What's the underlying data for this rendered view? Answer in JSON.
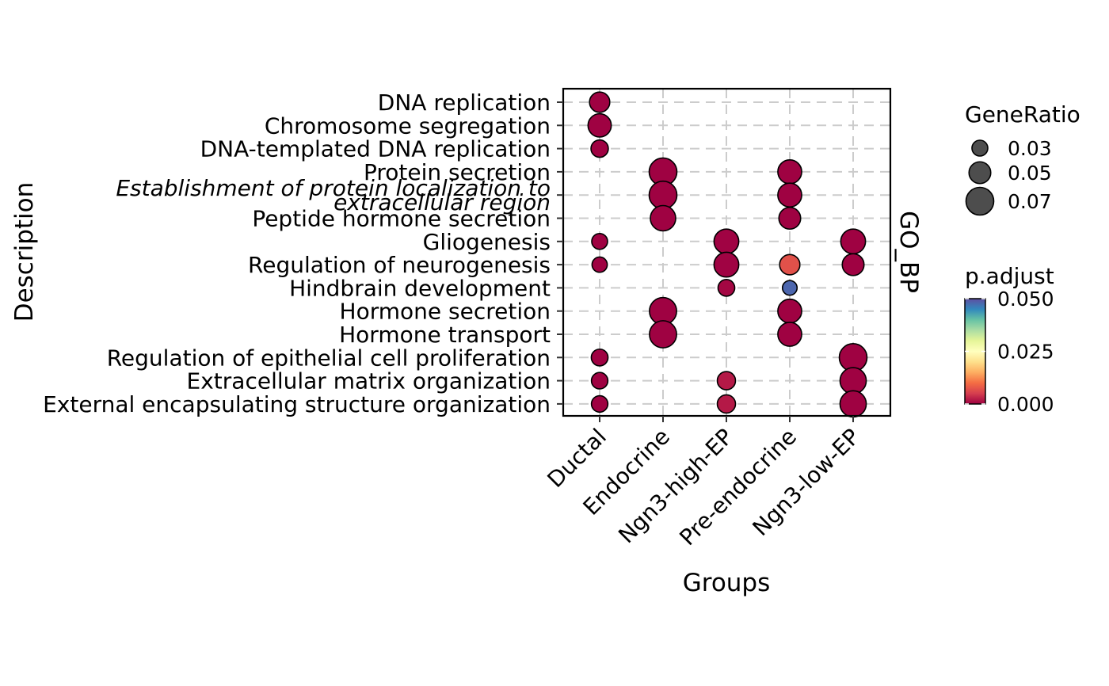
{
  "chart_data": {
    "type": "scatter",
    "x_categories": [
      "Ductal",
      "Endocrine",
      "Ngn3-high-EP",
      "Pre-endocrine",
      "Ngn3-low-EP"
    ],
    "y_categories": [
      "DNA replication",
      "Chromosome segregation",
      "DNA-templated DNA replication",
      "Protein secretion",
      "Establishment of protein localization to extracellular region",
      "Peptide hormone secretion",
      "Gliogenesis",
      "Regulation of neurogenesis",
      "Hindbrain development",
      "Hormone secretion",
      "Hormone transport",
      "Regulation of epithelial cell proliferation",
      "Extracellular matrix organization",
      "External encapsulating structure organization"
    ],
    "y_label_display": [
      [
        "DNA replication"
      ],
      [
        "Chromosome segregation"
      ],
      [
        "DNA-templated DNA replication"
      ],
      [
        "Protein secretion"
      ],
      [
        "Establishment of protein localization to",
        "extracellular region"
      ],
      [
        "Peptide hormone secretion"
      ],
      [
        "Gliogenesis"
      ],
      [
        "Regulation of neurogenesis"
      ],
      [
        "Hindbrain development"
      ],
      [
        "Hormone secretion"
      ],
      [
        "Hormone transport"
      ],
      [
        "Regulation of epithelial cell proliferation"
      ],
      [
        "Extracellular matrix organization"
      ],
      [
        "External encapsulating structure organization"
      ]
    ],
    "italic_y_labels": [
      "Establishment of protein localization to extracellular region"
    ],
    "xlabel": "Groups",
    "ylabel": "Description",
    "facet_label": "GO_BP",
    "grid": true,
    "points": [
      {
        "group": "Ductal",
        "term": "DNA replication",
        "gene_ratio": 0.045,
        "p_adjust": 0.0001
      },
      {
        "group": "Ductal",
        "term": "Chromosome segregation",
        "gene_ratio": 0.055,
        "p_adjust": 0.0001
      },
      {
        "group": "Ductal",
        "term": "DNA-templated DNA replication",
        "gene_ratio": 0.035,
        "p_adjust": 0.0001
      },
      {
        "group": "Ductal",
        "term": "Gliogenesis",
        "gene_ratio": 0.03,
        "p_adjust": 0.0001
      },
      {
        "group": "Ductal",
        "term": "Regulation of neurogenesis",
        "gene_ratio": 0.028,
        "p_adjust": 0.0001
      },
      {
        "group": "Ductal",
        "term": "Regulation of epithelial cell proliferation",
        "gene_ratio": 0.033,
        "p_adjust": 0.0001
      },
      {
        "group": "Ductal",
        "term": "Extracellular matrix organization",
        "gene_ratio": 0.032,
        "p_adjust": 0.0001
      },
      {
        "group": "Ductal",
        "term": "External encapsulating structure organization",
        "gene_ratio": 0.032,
        "p_adjust": 0.0001
      },
      {
        "group": "Endocrine",
        "term": "Protein secretion",
        "gene_ratio": 0.07,
        "p_adjust": 0.0001
      },
      {
        "group": "Endocrine",
        "term": "Establishment of protein localization to extracellular region",
        "gene_ratio": 0.07,
        "p_adjust": 0.0001
      },
      {
        "group": "Endocrine",
        "term": "Peptide hormone secretion",
        "gene_ratio": 0.062,
        "p_adjust": 0.0001
      },
      {
        "group": "Endocrine",
        "term": "Hormone secretion",
        "gene_ratio": 0.068,
        "p_adjust": 0.0001
      },
      {
        "group": "Endocrine",
        "term": "Hormone transport",
        "gene_ratio": 0.068,
        "p_adjust": 0.0001
      },
      {
        "group": "Ngn3-high-EP",
        "term": "Gliogenesis",
        "gene_ratio": 0.06,
        "p_adjust": 0.0002
      },
      {
        "group": "Ngn3-high-EP",
        "term": "Regulation of neurogenesis",
        "gene_ratio": 0.06,
        "p_adjust": 0.0002
      },
      {
        "group": "Ngn3-high-EP",
        "term": "Hindbrain development",
        "gene_ratio": 0.033,
        "p_adjust": 0.0005
      },
      {
        "group": "Ngn3-high-EP",
        "term": "Extracellular matrix organization",
        "gene_ratio": 0.038,
        "p_adjust": 0.002
      },
      {
        "group": "Ngn3-high-EP",
        "term": "External encapsulating structure organization",
        "gene_ratio": 0.038,
        "p_adjust": 0.002
      },
      {
        "group": "Pre-endocrine",
        "term": "Protein secretion",
        "gene_ratio": 0.057,
        "p_adjust": 0.0001
      },
      {
        "group": "Pre-endocrine",
        "term": "Establishment of protein localization to extracellular region",
        "gene_ratio": 0.057,
        "p_adjust": 0.0001
      },
      {
        "group": "Pre-endocrine",
        "term": "Peptide hormone secretion",
        "gene_ratio": 0.05,
        "p_adjust": 0.0001
      },
      {
        "group": "Pre-endocrine",
        "term": "Regulation of neurogenesis",
        "gene_ratio": 0.045,
        "p_adjust": 0.007
      },
      {
        "group": "Pre-endocrine",
        "term": "Hindbrain development",
        "gene_ratio": 0.026,
        "p_adjust": 0.048
      },
      {
        "group": "Pre-endocrine",
        "term": "Hormone secretion",
        "gene_ratio": 0.057,
        "p_adjust": 0.0001
      },
      {
        "group": "Pre-endocrine",
        "term": "Hormone transport",
        "gene_ratio": 0.057,
        "p_adjust": 0.0001
      },
      {
        "group": "Ngn3-low-EP",
        "term": "Gliogenesis",
        "gene_ratio": 0.06,
        "p_adjust": 0.0001
      },
      {
        "group": "Ngn3-low-EP",
        "term": "Regulation of neurogenesis",
        "gene_ratio": 0.05,
        "p_adjust": 0.0001
      },
      {
        "group": "Ngn3-low-EP",
        "term": "Regulation of epithelial cell proliferation",
        "gene_ratio": 0.07,
        "p_adjust": 0.0001
      },
      {
        "group": "Ngn3-low-EP",
        "term": "Extracellular matrix organization",
        "gene_ratio": 0.065,
        "p_adjust": 0.0001
      },
      {
        "group": "Ngn3-low-EP",
        "term": "External encapsulating structure organization",
        "gene_ratio": 0.065,
        "p_adjust": 0.0001
      }
    ],
    "size_legend": {
      "title": "GeneRatio",
      "values": [
        0.03,
        0.05,
        0.07
      ],
      "labels": [
        "0.03",
        "0.05",
        "0.07"
      ],
      "key_color": "#4d4d4d"
    },
    "color_legend": {
      "title": "p.adjust",
      "range": [
        0.0,
        0.05
      ],
      "ticks": [
        0.05,
        0.025,
        0.0
      ],
      "tick_labels": [
        "0.050",
        "0.025",
        "0.000"
      ],
      "palette": "Spectral",
      "gradient_colors": [
        "#9e0142",
        "#d53e4f",
        "#f46d43",
        "#fdae61",
        "#fee08b",
        "#ffffbf",
        "#e6f598",
        "#abdda4",
        "#66c2a5",
        "#3288bd",
        "#5e4fa2"
      ]
    },
    "legend_position": "right",
    "colors": {
      "panel_border": "#000000",
      "grid": "#cccccc",
      "point_stroke": "#000000"
    }
  }
}
